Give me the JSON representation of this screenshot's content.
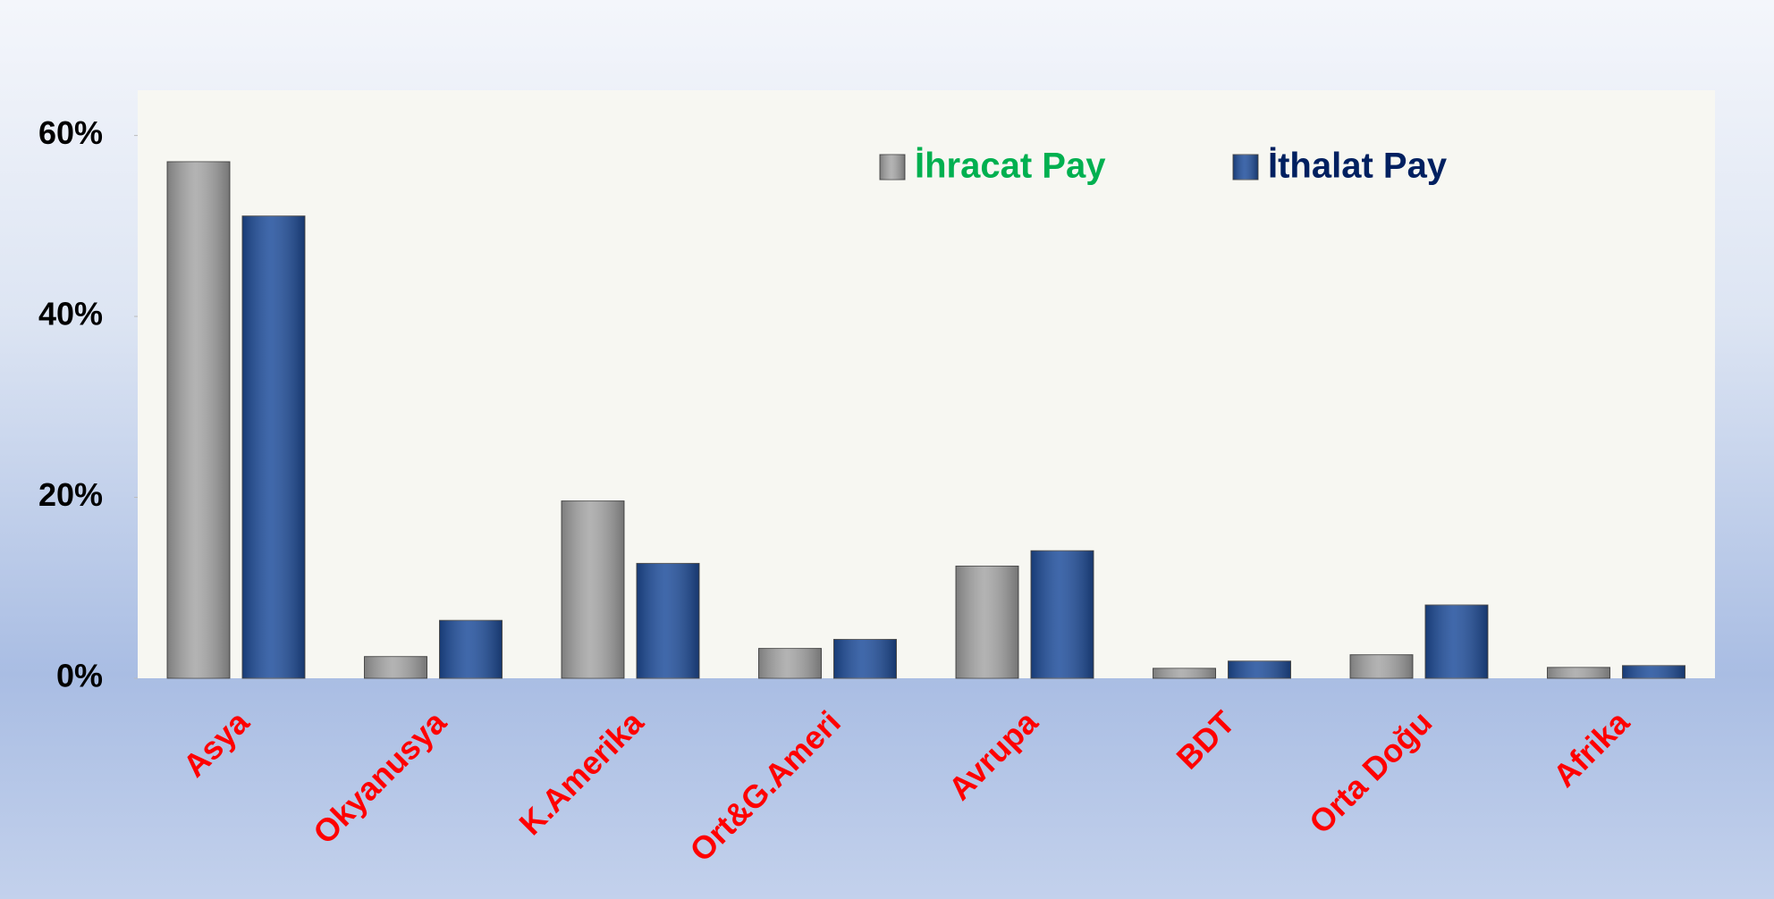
{
  "chart_data": {
    "type": "bar",
    "categories": [
      "Asya",
      "Okyanusya",
      "K.Amerika",
      "Ort&G.Ameri",
      "Avrupa",
      "BDT",
      "Orta Doğu",
      "Afrika"
    ],
    "series": [
      {
        "name": "İhracat Pay",
        "color": "#a6a6a6",
        "label_color": "#00b050",
        "values": [
          57.1,
          2.4,
          19.6,
          3.3,
          12.4,
          1.1,
          2.6,
          1.2
        ]
      },
      {
        "name": "İthalat Pay",
        "color": "#1f4e9c",
        "label_color": "#002060",
        "values": [
          51.1,
          6.4,
          12.7,
          4.3,
          14.1,
          1.9,
          8.1,
          1.4
        ]
      }
    ],
    "ylim": [
      0,
      65
    ],
    "yticks": [
      {
        "value": 0,
        "label": "0%"
      },
      {
        "value": 20,
        "label": "20%"
      },
      {
        "value": 40,
        "label": "40%"
      },
      {
        "value": 60,
        "label": "60%"
      }
    ],
    "category_label_color": "#ff0000",
    "legend": "top"
  }
}
